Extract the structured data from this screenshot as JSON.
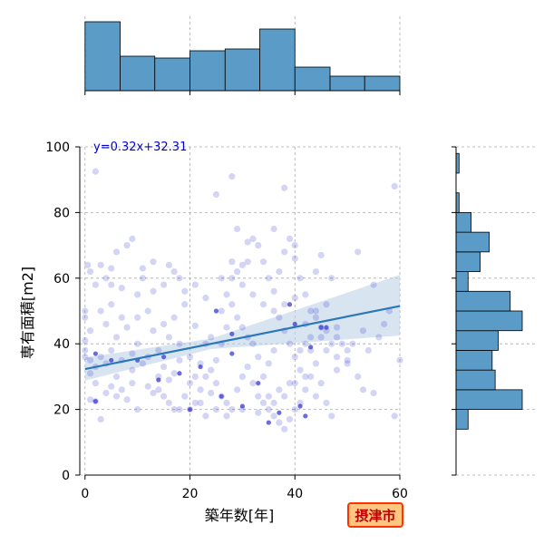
{
  "chart_data": {
    "type": "scatter",
    "title": "",
    "xlabel": "築年数[年]",
    "ylabel": "専有面積[m2]",
    "xlim": [
      -1,
      60
    ],
    "ylim": [
      0,
      100
    ],
    "x_ticks": [
      0,
      20,
      40,
      60
    ],
    "y_ticks": [
      0,
      20,
      40,
      60,
      80,
      100
    ],
    "grid": true,
    "regression": {
      "slope": 0.32,
      "intercept": 32.31,
      "label": "y=0.32x+32.31",
      "ci_lower_at_xmax": 42.5,
      "ci_upper_at_xmax": 61.0
    },
    "badge": "摂津市",
    "colors": {
      "point": "#3a3ad0",
      "histogram": "#5a9bc8",
      "regression": "#2b78b8",
      "band": "#b8d0e6",
      "badge_fill": "#ffc680",
      "badge_border": "#ff3300",
      "badge_text": "#c00000"
    },
    "x_hist": {
      "bins": [
        0,
        6.7,
        13.3,
        20,
        26.7,
        33.3,
        40,
        46.7,
        53.3,
        60
      ],
      "counts": [
        38,
        19,
        18,
        22,
        23,
        34,
        13,
        8,
        8
      ]
    },
    "y_hist": {
      "bins": [
        14,
        20,
        26,
        32,
        38,
        44,
        50,
        56,
        62,
        68,
        74,
        80,
        86,
        92,
        98
      ],
      "counts": [
        4,
        22,
        13,
        12,
        14,
        22,
        18,
        4,
        8,
        11,
        5,
        1,
        0,
        1,
        1
      ]
    },
    "points": [
      [
        2,
        92.5
      ],
      [
        0.5,
        64
      ],
      [
        3,
        64
      ],
      [
        1,
        62
      ],
      [
        4,
        60
      ],
      [
        6,
        68
      ],
      [
        9,
        72
      ],
      [
        8,
        70
      ],
      [
        11,
        63
      ],
      [
        11,
        60
      ],
      [
        13,
        65
      ],
      [
        16,
        64
      ],
      [
        17,
        62
      ],
      [
        18,
        60
      ],
      [
        15,
        58
      ],
      [
        13,
        56
      ],
      [
        10,
        55
      ],
      [
        7,
        57
      ],
      [
        5,
        58
      ],
      [
        2,
        58
      ],
      [
        0,
        50
      ],
      [
        0,
        48
      ],
      [
        1,
        44
      ],
      [
        0,
        41
      ],
      [
        0,
        38
      ],
      [
        0,
        36
      ],
      [
        1,
        35
      ],
      [
        1,
        31
      ],
      [
        2,
        28
      ],
      [
        1,
        23
      ],
      [
        2,
        22.5
      ],
      [
        3,
        17
      ],
      [
        4,
        25
      ],
      [
        5,
        27
      ],
      [
        6,
        30
      ],
      [
        7,
        26
      ],
      [
        6,
        24
      ],
      [
        8,
        23
      ],
      [
        10,
        20
      ],
      [
        9,
        28
      ],
      [
        12,
        27
      ],
      [
        13,
        25
      ],
      [
        14,
        30
      ],
      [
        15,
        33
      ],
      [
        16,
        29
      ],
      [
        17,
        31
      ],
      [
        18,
        35
      ],
      [
        18,
        40
      ],
      [
        16,
        42
      ],
      [
        14,
        38
      ],
      [
        12,
        36
      ],
      [
        10,
        40
      ],
      [
        9,
        37
      ],
      [
        8,
        45
      ],
      [
        7,
        48
      ],
      [
        5,
        52
      ],
      [
        3,
        50
      ],
      [
        4,
        46
      ],
      [
        6,
        42
      ],
      [
        5,
        38
      ],
      [
        3,
        36
      ],
      [
        4,
        34
      ],
      [
        2,
        33
      ],
      [
        7,
        35
      ],
      [
        9,
        32
      ],
      [
        11,
        34
      ],
      [
        13,
        44
      ],
      [
        15,
        46
      ],
      [
        17,
        48
      ],
      [
        19,
        52
      ],
      [
        20,
        20
      ],
      [
        21,
        22
      ],
      [
        22,
        26
      ],
      [
        23,
        30
      ],
      [
        24,
        25
      ],
      [
        25,
        28
      ],
      [
        26,
        24
      ],
      [
        27,
        22
      ],
      [
        28,
        20
      ],
      [
        29,
        26
      ],
      [
        30,
        30
      ],
      [
        31,
        33
      ],
      [
        32,
        28
      ],
      [
        33,
        24
      ],
      [
        34,
        22
      ],
      [
        35,
        20
      ],
      [
        36,
        18
      ],
      [
        37,
        16
      ],
      [
        38,
        14
      ],
      [
        39,
        17
      ],
      [
        40,
        20
      ],
      [
        41,
        22
      ],
      [
        42,
        26
      ],
      [
        43,
        30
      ],
      [
        44,
        24
      ],
      [
        45,
        28
      ],
      [
        46,
        22
      ],
      [
        47,
        18
      ],
      [
        48,
        32
      ],
      [
        50,
        35
      ],
      [
        52,
        30
      ],
      [
        54,
        38
      ],
      [
        56,
        42
      ],
      [
        57,
        46
      ],
      [
        58,
        50
      ],
      [
        59,
        18
      ],
      [
        60,
        35
      ],
      [
        55,
        25
      ],
      [
        53,
        26
      ],
      [
        51,
        40
      ],
      [
        21,
        45.5
      ],
      [
        23,
        40
      ],
      [
        24,
        42
      ],
      [
        26,
        50
      ],
      [
        27,
        55
      ],
      [
        28,
        60
      ],
      [
        29,
        62
      ],
      [
        30,
        58
      ],
      [
        31,
        65
      ],
      [
        32,
        72
      ],
      [
        33,
        70
      ],
      [
        34,
        65
      ],
      [
        35,
        60
      ],
      [
        36,
        56
      ],
      [
        37,
        62
      ],
      [
        38,
        68
      ],
      [
        39,
        72
      ],
      [
        40,
        66
      ],
      [
        41,
        60
      ],
      [
        42,
        55
      ],
      [
        43,
        50
      ],
      [
        44,
        48
      ],
      [
        45,
        45
      ],
      [
        46,
        52
      ],
      [
        47,
        60
      ],
      [
        48,
        45
      ],
      [
        49,
        40
      ],
      [
        50,
        38
      ],
      [
        52,
        68
      ],
      [
        55,
        58
      ],
      [
        25,
        85.5
      ],
      [
        28,
        91
      ],
      [
        38,
        87.5
      ],
      [
        59,
        88
      ],
      [
        29,
        75
      ],
      [
        31,
        71
      ],
      [
        36,
        75
      ],
      [
        40,
        70
      ],
      [
        45,
        67
      ],
      [
        44,
        62
      ],
      [
        37,
        48
      ],
      [
        38,
        44
      ],
      [
        39,
        40
      ],
      [
        40,
        36
      ],
      [
        41,
        38
      ],
      [
        42,
        40
      ],
      [
        43,
        42
      ],
      [
        36,
        38
      ],
      [
        35,
        34
      ],
      [
        34,
        30
      ],
      [
        33,
        36
      ],
      [
        32,
        40
      ],
      [
        31,
        42
      ],
      [
        30,
        45
      ],
      [
        29,
        48
      ],
      [
        28,
        52
      ],
      [
        27,
        45
      ],
      [
        26,
        40
      ],
      [
        25,
        35
      ],
      [
        24,
        32
      ],
      [
        22,
        34
      ],
      [
        21,
        30
      ],
      [
        20,
        28
      ],
      [
        19,
        24
      ],
      [
        18,
        20
      ],
      [
        17,
        20
      ],
      [
        16,
        22
      ],
      [
        15,
        24
      ],
      [
        14,
        26
      ],
      [
        20,
        36
      ],
      [
        22,
        22
      ],
      [
        23,
        18
      ],
      [
        25,
        20
      ],
      [
        27,
        18
      ],
      [
        30,
        20
      ],
      [
        33,
        19
      ],
      [
        36,
        22
      ],
      [
        38,
        24
      ],
      [
        40,
        28
      ],
      [
        42,
        30
      ],
      [
        44,
        34
      ],
      [
        46,
        38
      ],
      [
        48,
        42
      ],
      [
        47,
        40
      ],
      [
        45,
        42
      ],
      [
        43,
        38
      ],
      [
        41,
        32
      ],
      [
        39,
        28
      ],
      [
        37,
        26
      ],
      [
        35,
        24
      ],
      [
        5,
        63
      ],
      [
        10,
        48
      ],
      [
        12,
        50
      ],
      [
        19,
        56
      ],
      [
        21,
        58
      ],
      [
        23,
        54
      ],
      [
        26,
        60
      ],
      [
        28,
        65
      ],
      [
        30,
        64
      ],
      [
        32,
        55
      ],
      [
        34,
        52
      ],
      [
        36,
        50
      ],
      [
        38,
        52
      ],
      [
        40,
        54
      ],
      [
        42,
        46
      ],
      [
        44,
        50
      ],
      [
        46,
        44
      ],
      [
        48,
        36
      ],
      [
        50,
        34
      ],
      [
        53,
        44
      ]
    ],
    "dark_points": [
      [
        2,
        22.5
      ],
      [
        2,
        37
      ],
      [
        10,
        35
      ],
      [
        14,
        29
      ],
      [
        18,
        31
      ],
      [
        20,
        20
      ],
      [
        22,
        33
      ],
      [
        25,
        50
      ],
      [
        26,
        24
      ],
      [
        28,
        37
      ],
      [
        30,
        21
      ],
      [
        33,
        28
      ],
      [
        35,
        16
      ],
      [
        37,
        19
      ],
      [
        39,
        52
      ],
      [
        40,
        46
      ],
      [
        41,
        21
      ],
      [
        45,
        45
      ],
      [
        46,
        45
      ],
      [
        43,
        39
      ],
      [
        15,
        36
      ],
      [
        5,
        35
      ],
      [
        28,
        43
      ],
      [
        42,
        18
      ]
    ]
  }
}
